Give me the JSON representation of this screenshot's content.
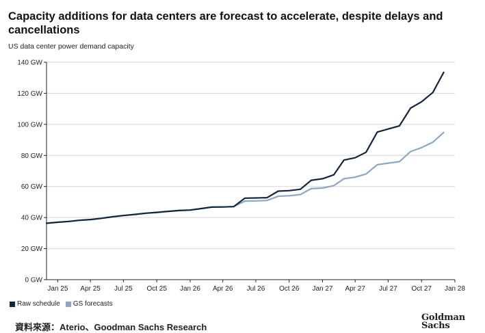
{
  "title": "Capacity additions for data centers are forecast to accelerate, despite delays and cancellations",
  "subtitle": "US data center power demand capacity",
  "source": "資料來源：Aterio、Goodman Sachs Research",
  "logo": {
    "line1": "Goldman",
    "line2": "Sachs"
  },
  "colors": {
    "raw": "#13243f",
    "gs": "#8aa7c8",
    "axis": "#222222",
    "grid": "#d6d6d6"
  },
  "chart_data": {
    "type": "line",
    "title": "Capacity additions for data centers are forecast to accelerate, despite delays and cancellations",
    "subtitle": "US data center power demand capacity",
    "xlabel": "",
    "ylabel": "",
    "x_range": [
      "2024-12-01",
      "2028-01-01"
    ],
    "ylim": [
      0,
      140
    ],
    "y_ticks": [
      {
        "value": 0,
        "label": "0 GW"
      },
      {
        "value": 20,
        "label": "20 GW"
      },
      {
        "value": 40,
        "label": "40 GW"
      },
      {
        "value": 60,
        "label": "60 GW"
      },
      {
        "value": 80,
        "label": "80 GW"
      },
      {
        "value": 100,
        "label": "100 GW"
      },
      {
        "value": 120,
        "label": "120 GW"
      },
      {
        "value": 140,
        "label": "140 GW"
      }
    ],
    "x_ticks": [
      {
        "date": "2025-01-01",
        "label": "Jan 25"
      },
      {
        "date": "2025-04-01",
        "label": "Apr 25"
      },
      {
        "date": "2025-07-01",
        "label": "Jul 25"
      },
      {
        "date": "2025-10-01",
        "label": "Oct 25"
      },
      {
        "date": "2026-01-01",
        "label": "Jan 26"
      },
      {
        "date": "2026-04-01",
        "label": "Apr 26"
      },
      {
        "date": "2026-07-01",
        "label": "Jul 26"
      },
      {
        "date": "2026-10-01",
        "label": "Oct 26"
      },
      {
        "date": "2027-01-01",
        "label": "Jan 27"
      },
      {
        "date": "2027-04-01",
        "label": "Apr 27"
      },
      {
        "date": "2027-07-01",
        "label": "Jul 27"
      },
      {
        "date": "2027-10-01",
        "label": "Oct 27"
      },
      {
        "date": "2028-01-01",
        "label": "Jan 28"
      }
    ],
    "grid": true,
    "legend_position": "bottom-left",
    "series": [
      {
        "name": "Raw schedule",
        "color": "#13243f",
        "points": [
          [
            "2024-12-01",
            36.3
          ],
          [
            "2025-01-01",
            37.0
          ],
          [
            "2025-02-01",
            37.5
          ],
          [
            "2025-03-01",
            38.2
          ],
          [
            "2025-04-01",
            38.7
          ],
          [
            "2025-05-01",
            39.5
          ],
          [
            "2025-06-01",
            40.5
          ],
          [
            "2025-07-01",
            41.3
          ],
          [
            "2025-08-01",
            42.0
          ],
          [
            "2025-09-01",
            42.8
          ],
          [
            "2025-10-01",
            43.3
          ],
          [
            "2025-11-01",
            44.0
          ],
          [
            "2025-12-01",
            44.5
          ],
          [
            "2026-01-01",
            44.8
          ],
          [
            "2026-02-01",
            45.8
          ],
          [
            "2026-03-01",
            46.7
          ],
          [
            "2026-04-01",
            46.8
          ],
          [
            "2026-05-01",
            47.0
          ],
          [
            "2026-06-01",
            52.5
          ],
          [
            "2026-07-01",
            52.6
          ],
          [
            "2026-08-01",
            52.8
          ],
          [
            "2026-09-01",
            57.0
          ],
          [
            "2026-10-01",
            57.3
          ],
          [
            "2026-11-01",
            58.2
          ],
          [
            "2026-12-01",
            64.0
          ],
          [
            "2027-01-01",
            65.0
          ],
          [
            "2027-02-01",
            67.5
          ],
          [
            "2027-03-01",
            77.0
          ],
          [
            "2027-04-01",
            78.5
          ],
          [
            "2027-05-01",
            82.0
          ],
          [
            "2027-06-01",
            95.0
          ],
          [
            "2027-07-01",
            97.0
          ],
          [
            "2027-08-01",
            99.0
          ],
          [
            "2027-09-01",
            110.5
          ],
          [
            "2027-10-01",
            114.5
          ],
          [
            "2027-11-01",
            120.5
          ],
          [
            "2027-12-01",
            133.5
          ]
        ]
      },
      {
        "name": "GS forecasts",
        "color": "#8aa7c8",
        "points": [
          [
            "2024-12-01",
            36.3
          ],
          [
            "2025-01-01",
            37.0
          ],
          [
            "2025-02-01",
            37.5
          ],
          [
            "2025-03-01",
            38.2
          ],
          [
            "2025-04-01",
            38.7
          ],
          [
            "2025-05-01",
            39.5
          ],
          [
            "2025-06-01",
            40.5
          ],
          [
            "2025-07-01",
            41.3
          ],
          [
            "2025-08-01",
            42.0
          ],
          [
            "2025-09-01",
            42.8
          ],
          [
            "2025-10-01",
            43.3
          ],
          [
            "2025-11-01",
            44.0
          ],
          [
            "2025-12-01",
            44.5
          ],
          [
            "2026-01-01",
            44.8
          ],
          [
            "2026-02-01",
            45.8
          ],
          [
            "2026-03-01",
            46.7
          ],
          [
            "2026-04-01",
            46.8
          ],
          [
            "2026-05-01",
            47.0
          ],
          [
            "2026-06-01",
            50.6
          ],
          [
            "2026-07-01",
            50.7
          ],
          [
            "2026-08-01",
            51.0
          ],
          [
            "2026-09-01",
            53.7
          ],
          [
            "2026-10-01",
            54.0
          ],
          [
            "2026-11-01",
            54.8
          ],
          [
            "2026-12-01",
            58.6
          ],
          [
            "2027-01-01",
            59.0
          ],
          [
            "2027-02-01",
            60.5
          ],
          [
            "2027-03-01",
            65.0
          ],
          [
            "2027-04-01",
            66.0
          ],
          [
            "2027-05-01",
            68.0
          ],
          [
            "2027-06-01",
            74.0
          ],
          [
            "2027-07-01",
            75.0
          ],
          [
            "2027-08-01",
            76.0
          ],
          [
            "2027-09-01",
            82.5
          ],
          [
            "2027-10-01",
            85.0
          ],
          [
            "2027-11-01",
            88.5
          ],
          [
            "2027-12-01",
            94.8
          ]
        ]
      }
    ]
  }
}
